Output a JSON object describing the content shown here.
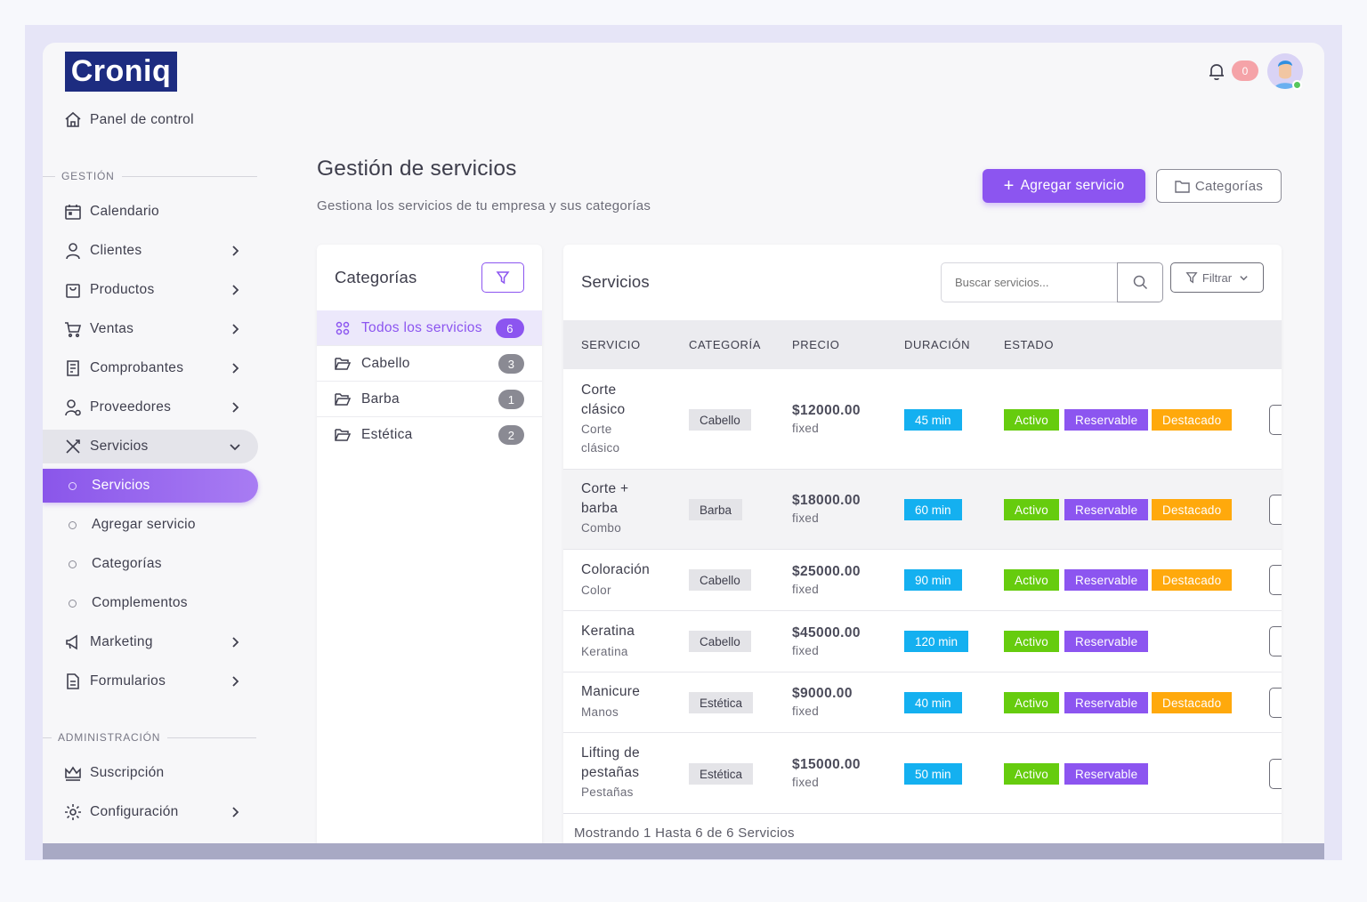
{
  "brand": "Croniq",
  "sidebar": {
    "dashboard": "Panel de control",
    "section_gestion": "GESTIÓN",
    "section_admin": "ADMINISTRACIÓN",
    "items": {
      "calendario": "Calendario",
      "clientes": "Clientes",
      "productos": "Productos",
      "ventas": "Ventas",
      "comprobantes": "Comprobantes",
      "proveedores": "Proveedores",
      "servicios": "Servicios",
      "sub_servicios": "Servicios",
      "sub_agregar": "Agregar servicio",
      "sub_categorias": "Categorías",
      "sub_complementos": "Complementos",
      "marketing": "Marketing",
      "formularios": "Formularios",
      "suscripcion": "Suscripción",
      "configuracion": "Configuración"
    }
  },
  "topbar": {
    "notification_count": "0"
  },
  "header": {
    "title": "Gestión de servicios",
    "subtitle": "Gestiona los servicios de tu empresa y sus categorías",
    "add_button": "Agregar servicio",
    "categories_button": "Categorías"
  },
  "categories": {
    "title": "Categorías",
    "items": [
      {
        "label": "Todos los servicios",
        "count": "6"
      },
      {
        "label": "Cabello",
        "count": "3"
      },
      {
        "label": "Barba",
        "count": "1"
      },
      {
        "label": "Estética",
        "count": "2"
      }
    ]
  },
  "services": {
    "title": "Servicios",
    "search_placeholder": "Buscar servicios...",
    "filter_label": "Filtrar",
    "columns": {
      "servicio": "SERVICIO",
      "categoria": "CATEGORÍA",
      "precio": "PRECIO",
      "duracion": "DURACIÓN",
      "estado": "ESTADO"
    },
    "status_labels": {
      "active": "Activo",
      "bookable": "Reservable",
      "featured": "Destacado"
    },
    "rows": [
      {
        "name": "Corte clásico",
        "desc": "Corte clásico",
        "category": "Cabello",
        "price": "$12000.00",
        "price_type": "fixed",
        "duration": "45 min"
      },
      {
        "name": "Corte + barba",
        "desc": "Combo",
        "category": "Barba",
        "price": "$18000.00",
        "price_type": "fixed",
        "duration": "60 min"
      },
      {
        "name": "Coloración",
        "desc": "Color",
        "category": "Cabello",
        "price": "$25000.00",
        "price_type": "fixed",
        "duration": "90 min"
      },
      {
        "name": "Keratina",
        "desc": "Keratina",
        "category": "Cabello",
        "price": "$45000.00",
        "price_type": "fixed",
        "duration": "120 min"
      },
      {
        "name": "Manicure",
        "desc": "Manos",
        "category": "Estética",
        "price": "$9000.00",
        "price_type": "fixed",
        "duration": "40 min"
      },
      {
        "name": "Lifting de pestañas",
        "desc": "Pestañas",
        "category": "Estética",
        "price": "$15000.00",
        "price_type": "fixed",
        "duration": "50 min"
      }
    ],
    "footer": "Mostrando 1 Hasta 6 de 6 Servicios"
  },
  "colors": {
    "accent": "#8c55f0",
    "brand": "#1d2c80",
    "active": "#66cc0e",
    "featured": "#ffa90c",
    "duration": "#14b0f0"
  }
}
